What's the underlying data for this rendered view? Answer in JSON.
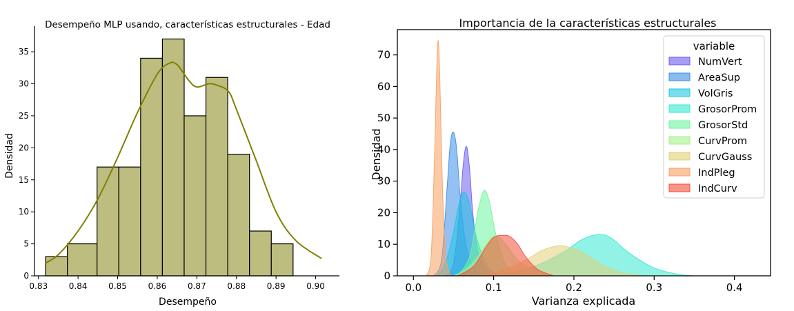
{
  "chart_data": [
    {
      "type": "bar",
      "title": "Desempeño MLP usando, características estructurales - Edad",
      "xlabel": "Desempeño",
      "ylabel": "Densidad",
      "xlim": [
        0.829,
        0.906
      ],
      "ylim": [
        0,
        39
      ],
      "xticks": [
        "0.83",
        "0.84",
        "0.85",
        "0.86",
        "0.87",
        "0.88",
        "0.89",
        "0.90"
      ],
      "yticks": [
        "0",
        "5",
        "10",
        "15",
        "20",
        "25",
        "30",
        "35"
      ],
      "bar_color": "#bdbd7f",
      "kde_color": "#808000",
      "bins": [
        {
          "x0": 0.8318,
          "x1": 0.8373,
          "value": 3
        },
        {
          "x0": 0.8373,
          "x1": 0.8448,
          "value": 5
        },
        {
          "x0": 0.8448,
          "x1": 0.8503,
          "value": 17
        },
        {
          "x0": 0.8503,
          "x1": 0.8558,
          "value": 17
        },
        {
          "x0": 0.8558,
          "x1": 0.8613,
          "value": 34
        },
        {
          "x0": 0.8613,
          "x1": 0.8668,
          "value": 37
        },
        {
          "x0": 0.8668,
          "x1": 0.8723,
          "value": 25
        },
        {
          "x0": 0.8723,
          "x1": 0.8778,
          "value": 31
        },
        {
          "x0": 0.8778,
          "x1": 0.8833,
          "value": 19
        },
        {
          "x0": 0.8833,
          "x1": 0.8888,
          "value": 7
        },
        {
          "x0": 0.8888,
          "x1": 0.8943,
          "value": 5
        }
      ],
      "kde": {
        "x": [
          0.8318,
          0.835,
          0.84,
          0.845,
          0.85,
          0.855,
          0.86,
          0.863,
          0.865,
          0.868,
          0.87,
          0.873,
          0.875,
          0.878,
          0.88,
          0.885,
          0.89,
          0.895,
          0.9015
        ],
        "y": [
          2.0,
          3.3,
          7.0,
          12.0,
          18.5,
          25.5,
          31.5,
          33.2,
          33.0,
          30.5,
          29.5,
          30.0,
          29.8,
          28.8,
          26.0,
          18.0,
          10.0,
          5.5,
          2.7
        ]
      }
    },
    {
      "type": "area",
      "title": "Importancia de la características estructurales",
      "xlabel": "Varianza explicada",
      "ylabel": "Densidad",
      "xlim": [
        -0.02,
        0.445
      ],
      "ylim": [
        0,
        78
      ],
      "xticks": [
        "0.0",
        "0.1",
        "0.2",
        "0.3",
        "0.4"
      ],
      "yticks": [
        "0",
        "10",
        "20",
        "30",
        "40",
        "50",
        "60",
        "70"
      ],
      "legend_title": "variable",
      "legend_position": "top-right",
      "series": [
        {
          "name": "NumVert",
          "color": "#6b5cf0",
          "x": [
            0.04,
            0.05,
            0.058,
            0.062,
            0.066,
            0.07,
            0.074,
            0.08,
            0.09,
            0.1
          ],
          "y": [
            0,
            4,
            22,
            35,
            41,
            34,
            20,
            8,
            2,
            0
          ]
        },
        {
          "name": "AreaSup",
          "color": "#3b8ee8",
          "x": [
            0.025,
            0.035,
            0.042,
            0.046,
            0.05,
            0.054,
            0.058,
            0.064,
            0.072,
            0.085
          ],
          "y": [
            0,
            5,
            28,
            42,
            45.5,
            40,
            26,
            12,
            4,
            0
          ]
        },
        {
          "name": "VolGris",
          "color": "#1ec6e0",
          "x": [
            0.03,
            0.04,
            0.05,
            0.058,
            0.064,
            0.07,
            0.076,
            0.085,
            0.095,
            0.11
          ],
          "y": [
            0,
            4,
            14,
            24,
            26.5,
            23,
            15,
            7,
            2,
            0
          ]
        },
        {
          "name": "GrosorProm",
          "color": "#35ead0",
          "x": [
            0.09,
            0.13,
            0.16,
            0.19,
            0.21,
            0.228,
            0.245,
            0.27,
            0.3,
            0.33,
            0.35
          ],
          "y": [
            0,
            1.5,
            4,
            8,
            11.5,
            13,
            12.2,
            7,
            2.5,
            0.5,
            0
          ]
        },
        {
          "name": "GrosorStd",
          "color": "#6ef59e",
          "x": [
            0.055,
            0.07,
            0.08,
            0.086,
            0.09,
            0.095,
            0.102,
            0.112,
            0.125,
            0.14
          ],
          "y": [
            0,
            6,
            20,
            26,
            27,
            23,
            14,
            5,
            1,
            0
          ]
        },
        {
          "name": "CurvProm",
          "color": "#a6f08a",
          "x": [
            0.05,
            0.065,
            0.08,
            0.095,
            0.105,
            0.115,
            0.13,
            0.15,
            0.17
          ],
          "y": [
            0,
            2,
            6,
            11.5,
            12.5,
            10,
            5,
            1.5,
            0
          ]
        },
        {
          "name": "CurvGauss",
          "color": "#e2d078",
          "x": [
            0.08,
            0.11,
            0.14,
            0.16,
            0.18,
            0.195,
            0.21,
            0.235,
            0.26,
            0.29
          ],
          "y": [
            0,
            1.5,
            5,
            8,
            9.5,
            9.0,
            7.5,
            3.5,
            1,
            0
          ]
        },
        {
          "name": "IndPleg",
          "color": "#f7a060",
          "x": [
            0.016,
            0.022,
            0.026,
            0.029,
            0.031,
            0.033,
            0.036,
            0.04,
            0.046
          ],
          "y": [
            0,
            6,
            35,
            65,
            74.5,
            62,
            30,
            7,
            0
          ]
        },
        {
          "name": "IndCurv",
          "color": "#f44e3a",
          "x": [
            0.055,
            0.075,
            0.09,
            0.1,
            0.11,
            0.12,
            0.13,
            0.14,
            0.155,
            0.175
          ],
          "y": [
            0,
            3,
            9,
            12.2,
            12.8,
            12.5,
            10,
            6,
            2,
            0
          ]
        }
      ]
    }
  ]
}
